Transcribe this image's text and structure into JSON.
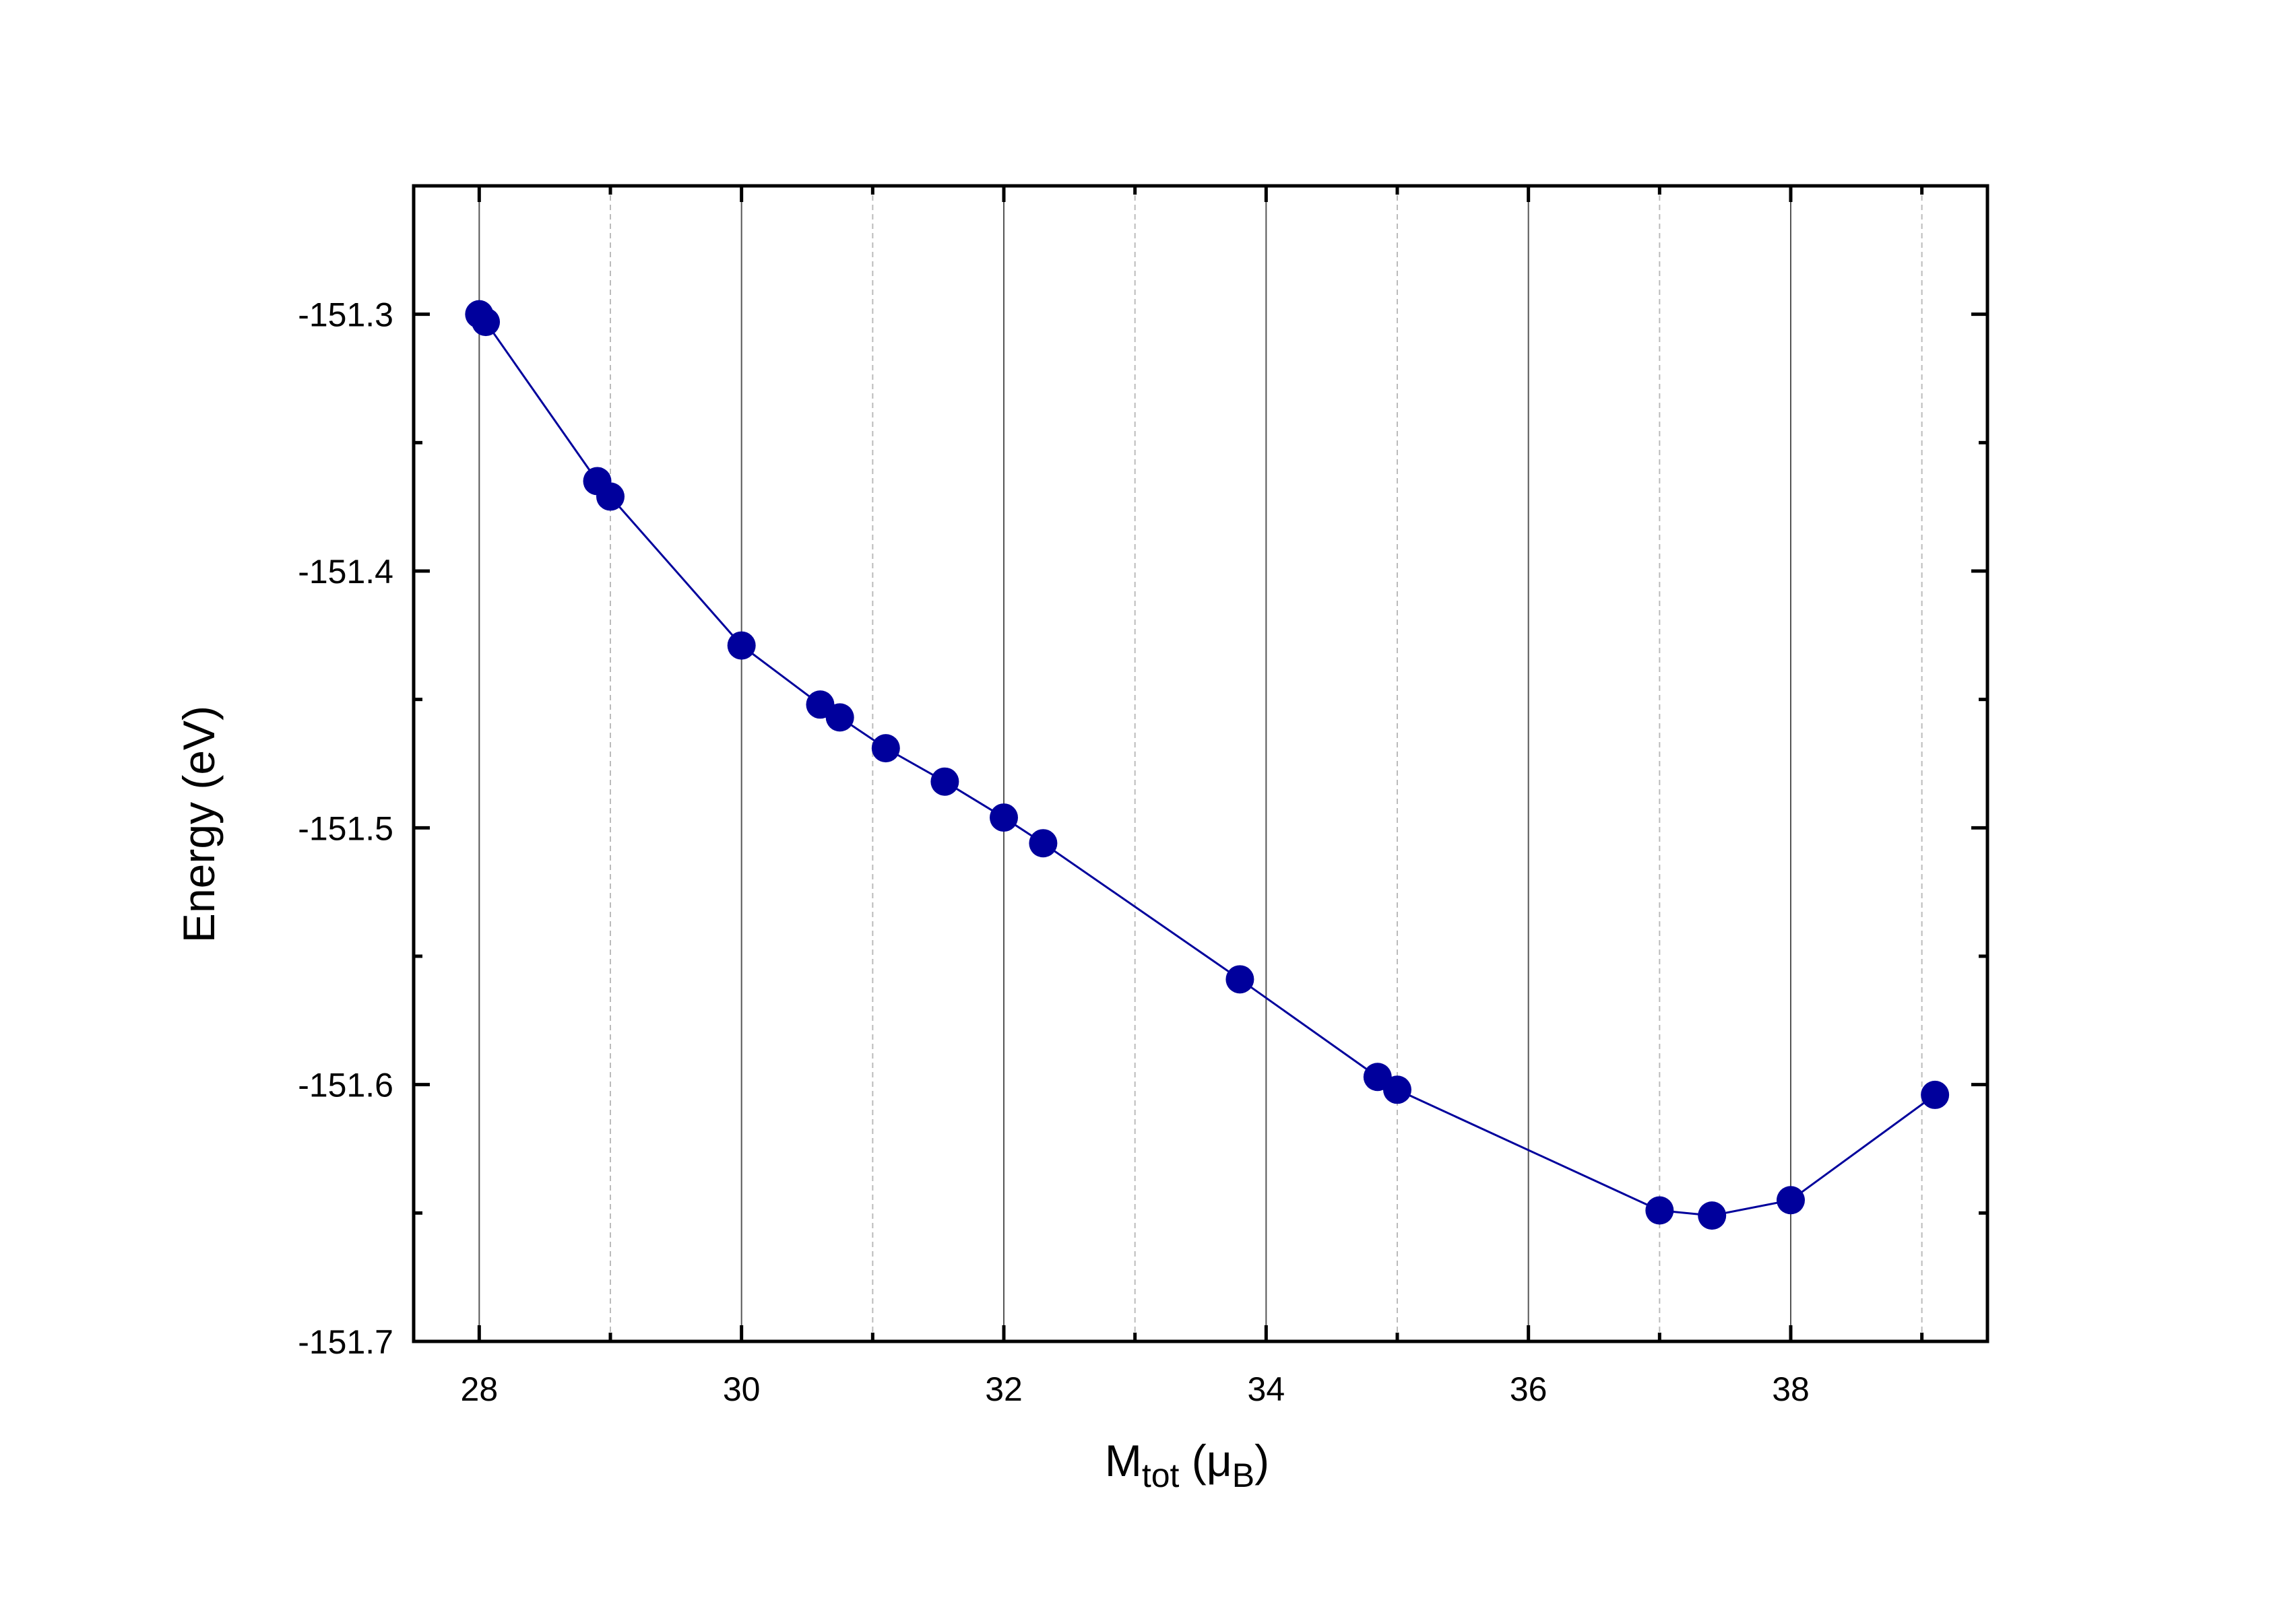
{
  "chart_data": {
    "type": "line",
    "title": "",
    "xlabel": {
      "main": "M",
      "sub": "tot",
      "open": " (μ",
      "sub2": "B",
      "close": ")"
    },
    "ylabel": "Energy (eV)",
    "xlim": [
      27.5,
      39.5
    ],
    "ylim": [
      -151.7,
      -151.25
    ],
    "x_major_ticks": [
      28,
      30,
      32,
      34,
      36,
      38
    ],
    "x_minor_ticks": [
      29,
      31,
      33,
      35,
      37,
      39
    ],
    "y_major_ticks": [
      -151.3,
      -151.4,
      -151.5,
      -151.6,
      -151.7
    ],
    "y_minor_ticks": [
      -151.35,
      -151.45,
      -151.55,
      -151.65
    ],
    "x_tick_labels": [
      "28",
      "30",
      "32",
      "34",
      "36",
      "38"
    ],
    "y_tick_labels": [
      "-151.3",
      "-151.4",
      "-151.5",
      "-151.6",
      "-151.7"
    ],
    "grid": "vertical",
    "colors": {
      "series": "#00009c",
      "grid_major": "#555555",
      "grid_minor": "#bbbbbb"
    },
    "series": [
      {
        "marker": "circle",
        "x": [
          28.0,
          28.05,
          28.9,
          29.0,
          30.0,
          30.6,
          30.75,
          31.1,
          31.55,
          32.0,
          32.3,
          33.8,
          34.85,
          35.0,
          37.0,
          37.4,
          38.0,
          39.1
        ],
        "y": [
          -151.3,
          -151.303,
          -151.365,
          -151.371,
          -151.429,
          -151.452,
          -151.457,
          -151.469,
          -151.482,
          -151.496,
          -151.506,
          -151.559,
          -151.597,
          -151.602,
          -151.649,
          -151.651,
          -151.645,
          -151.604
        ]
      }
    ]
  }
}
